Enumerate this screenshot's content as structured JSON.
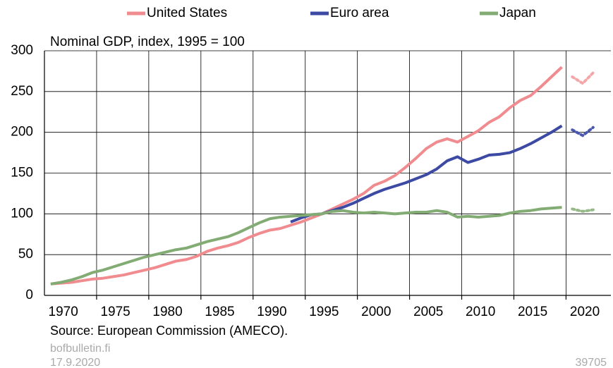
{
  "chart_data": {
    "type": "line",
    "title": "Nominal GDP, index, 1995 = 100",
    "source": "Source: European Commission (AMECO).",
    "publisher": "bofbulletin.fi",
    "date": "17.9.2020",
    "chart_id": "39705",
    "x": [
      1969,
      1970,
      1971,
      1972,
      1973,
      1974,
      1975,
      1976,
      1977,
      1978,
      1979,
      1980,
      1981,
      1982,
      1983,
      1984,
      1985,
      1986,
      1987,
      1988,
      1989,
      1990,
      1991,
      1992,
      1993,
      1994,
      1995,
      1996,
      1997,
      1998,
      1999,
      2000,
      2001,
      2002,
      2003,
      2004,
      2005,
      2006,
      2007,
      2008,
      2009,
      2010,
      2011,
      2012,
      2013,
      2014,
      2015,
      2016,
      2017,
      2018
    ],
    "forecast_x": [
      2019,
      2020,
      2021
    ],
    "series": [
      {
        "name": "United States",
        "color": "#f08c8f",
        "forecast_color": "#f4a7a9",
        "values": [
          14,
          15,
          16,
          18,
          20,
          21,
          23,
          25,
          28,
          31,
          34,
          38,
          42,
          44,
          48,
          54,
          58,
          61,
          65,
          71,
          76,
          80,
          82,
          86,
          90,
          95,
          100,
          106,
          112,
          118,
          125,
          135,
          140,
          147,
          157,
          168,
          180,
          188,
          192,
          188,
          195,
          202,
          212,
          219,
          230,
          239,
          245,
          256,
          268,
          280
        ],
        "forecast": [
          268,
          260,
          273
        ]
      },
      {
        "name": "Euro area",
        "color": "#3d4aa3",
        "forecast_color": "#4b58b0",
        "values": [
          null,
          null,
          null,
          null,
          null,
          null,
          null,
          null,
          null,
          null,
          null,
          null,
          null,
          null,
          null,
          null,
          null,
          null,
          null,
          null,
          null,
          null,
          null,
          90,
          95,
          99,
          100,
          104,
          108,
          113,
          119,
          125,
          130,
          134,
          138,
          143,
          148,
          155,
          165,
          170,
          163,
          167,
          172,
          173,
          175,
          180,
          186,
          193,
          200,
          208
        ],
        "forecast": [
          203,
          196,
          206
        ]
      },
      {
        "name": "Japan",
        "color": "#83ab74",
        "forecast_color": "#95ba87",
        "values": [
          14,
          16,
          19,
          23,
          28,
          31,
          35,
          39,
          43,
          47,
          50,
          53,
          56,
          58,
          62,
          66,
          69,
          72,
          77,
          83,
          89,
          94,
          96,
          97,
          98,
          99,
          100,
          103,
          104,
          102,
          101,
          102,
          101,
          100,
          101,
          102,
          102,
          104,
          102,
          96,
          97,
          96,
          97,
          98,
          101,
          103,
          104,
          106,
          107,
          108
        ],
        "forecast": [
          106,
          103,
          105
        ]
      }
    ],
    "xlim": [
      1968.4,
      2022.7
    ],
    "xticks": [
      1970,
      1975,
      1980,
      1985,
      1990,
      1995,
      2000,
      2005,
      2010,
      2015,
      2020
    ],
    "ylim": [
      0,
      300
    ],
    "yticks": [
      0,
      50,
      100,
      150,
      200,
      250,
      300
    ],
    "grid": true
  }
}
